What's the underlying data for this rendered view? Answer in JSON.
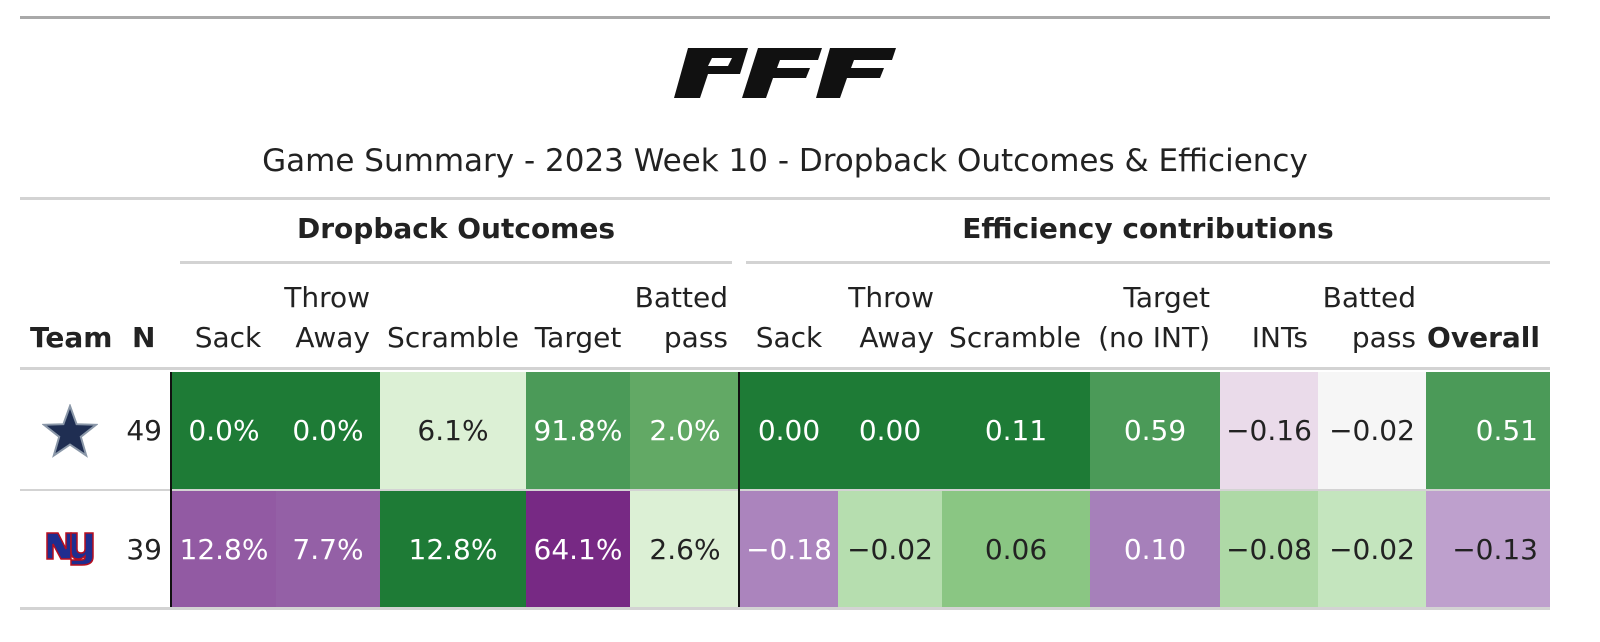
{
  "logo_text": "PFF",
  "title": "Game Summary - 2023 Week 10 - Dropback Outcomes & Efficiency",
  "spanners": {
    "outcomes": "Dropback Outcomes",
    "efficiency": "Efficiency contributions"
  },
  "columns": {
    "team": "Team",
    "n": "N",
    "o_sack": "Sack",
    "o_throwaway_1": "Throw",
    "o_throwaway_2": "Away",
    "o_scramble": "Scramble",
    "o_target": "Target",
    "o_batted_1": "Batted",
    "o_batted_2": "pass",
    "e_sack": "Sack",
    "e_throwaway_1": "Throw",
    "e_throwaway_2": "Away",
    "e_scramble": "Scramble",
    "e_target_1": "Target",
    "e_target_2": "(no INT)",
    "e_ints": "INTs",
    "e_batted_1": "Batted",
    "e_batted_2": "pass",
    "e_overall": "Overall"
  },
  "rows": [
    {
      "team_icon": "cowboys-star-icon",
      "n": "49",
      "outcomes": [
        {
          "v": "0.0%",
          "bg": "#1e7b36",
          "fg": "#ffffff"
        },
        {
          "v": "0.0%",
          "bg": "#1e7b36",
          "fg": "#ffffff"
        },
        {
          "v": "6.1%",
          "bg": "#dcf0d5",
          "fg": "#222222"
        },
        {
          "v": "91.8%",
          "bg": "#4b9a58",
          "fg": "#ffffff"
        },
        {
          "v": "2.0%",
          "bg": "#62a965",
          "fg": "#ffffff"
        }
      ],
      "efficiency": [
        {
          "v": "0.00",
          "bg": "#1e7b36",
          "fg": "#ffffff"
        },
        {
          "v": "0.00",
          "bg": "#1e7b36",
          "fg": "#ffffff"
        },
        {
          "v": "0.11",
          "bg": "#1e7b36",
          "fg": "#ffffff"
        },
        {
          "v": "0.59",
          "bg": "#4b9a58",
          "fg": "#ffffff"
        },
        {
          "v": "−0.16",
          "bg": "#eadbea",
          "fg": "#222222"
        },
        {
          "v": "−0.02",
          "bg": "#f6f6f6",
          "fg": "#222222"
        },
        {
          "v": "0.51",
          "bg": "#4b9a58",
          "fg": "#ffffff"
        }
      ]
    },
    {
      "team_icon": "giants-ny-icon",
      "n": "39",
      "outcomes": [
        {
          "v": "12.8%",
          "bg": "#925aa3",
          "fg": "#ffffff"
        },
        {
          "v": "7.7%",
          "bg": "#9460a6",
          "fg": "#ffffff"
        },
        {
          "v": "12.8%",
          "bg": "#1e7b36",
          "fg": "#ffffff"
        },
        {
          "v": "64.1%",
          "bg": "#772984",
          "fg": "#ffffff"
        },
        {
          "v": "2.6%",
          "bg": "#dcf0d5",
          "fg": "#222222"
        }
      ],
      "efficiency": [
        {
          "v": "−0.18",
          "bg": "#ab84bd",
          "fg": "#ffffff"
        },
        {
          "v": "−0.02",
          "bg": "#b6deaf",
          "fg": "#222222"
        },
        {
          "v": "0.06",
          "bg": "#8ac683",
          "fg": "#222222"
        },
        {
          "v": "0.10",
          "bg": "#a680ba",
          "fg": "#ffffff"
        },
        {
          "v": "−0.08",
          "bg": "#aed9a6",
          "fg": "#222222"
        },
        {
          "v": "−0.02",
          "bg": "#c4e5be",
          "fg": "#222222"
        },
        {
          "v": "−0.13",
          "bg": "#bea0cd",
          "fg": "#222222"
        }
      ]
    }
  ]
}
